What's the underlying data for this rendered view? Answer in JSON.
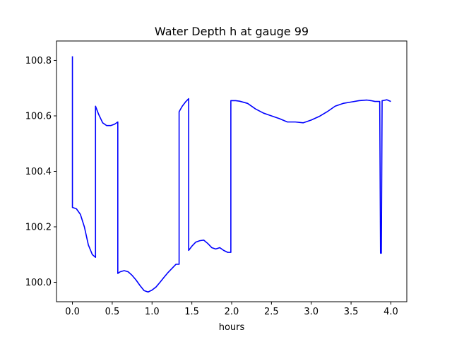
{
  "chart_data": {
    "type": "line",
    "title": "Water Depth h at gauge 99",
    "xlabel": "hours",
    "ylabel": "",
    "xlim": [
      -0.2,
      4.2
    ],
    "ylim": [
      99.93,
      100.87
    ],
    "xticks": [
      0.0,
      0.5,
      1.0,
      1.5,
      2.0,
      2.5,
      3.0,
      3.5,
      4.0
    ],
    "xtick_labels": [
      "0.0",
      "0.5",
      "1.0",
      "1.5",
      "2.0",
      "2.5",
      "3.0",
      "3.5",
      "4.0"
    ],
    "yticks": [
      100.0,
      100.2,
      100.4,
      100.6,
      100.8
    ],
    "ytick_labels": [
      "100.0",
      "100.2",
      "100.4",
      "100.6",
      "100.8"
    ],
    "grid": false,
    "color": "#0000ff",
    "series": [
      {
        "x": [
          0.0,
          0.0,
          0.05,
          0.1,
          0.15,
          0.2,
          0.25,
          0.29,
          0.29,
          0.33,
          0.38,
          0.43,
          0.48,
          0.53,
          0.57,
          0.57,
          0.6,
          0.65,
          0.7,
          0.75,
          0.8,
          0.85,
          0.9,
          0.95,
          1.0,
          1.05,
          1.1,
          1.15,
          1.2,
          1.25,
          1.3,
          1.34,
          1.34,
          1.38,
          1.42,
          1.46,
          1.46,
          1.5,
          1.55,
          1.6,
          1.65,
          1.7,
          1.75,
          1.8,
          1.85,
          1.9,
          1.95,
          1.99,
          1.99,
          2.05,
          2.1,
          2.2,
          2.3,
          2.4,
          2.5,
          2.6,
          2.7,
          2.8,
          2.9,
          3.0,
          3.1,
          3.2,
          3.3,
          3.4,
          3.5,
          3.6,
          3.7,
          3.75,
          3.8,
          3.86,
          3.87,
          3.88,
          3.89,
          3.9,
          3.95,
          4.0
        ],
        "y": [
          100.815,
          100.27,
          100.265,
          100.245,
          100.2,
          100.135,
          100.1,
          100.09,
          100.635,
          100.605,
          100.575,
          100.565,
          100.565,
          100.57,
          100.578,
          100.032,
          100.038,
          100.042,
          100.038,
          100.025,
          100.008,
          99.988,
          99.97,
          99.965,
          99.972,
          99.983,
          100.0,
          100.018,
          100.035,
          100.05,
          100.065,
          100.065,
          100.615,
          100.635,
          100.65,
          100.662,
          100.115,
          100.13,
          100.145,
          100.15,
          100.152,
          100.14,
          100.125,
          100.12,
          100.125,
          100.115,
          100.108,
          100.108,
          100.655,
          100.655,
          100.653,
          100.645,
          100.625,
          100.61,
          100.6,
          100.59,
          100.578,
          100.578,
          100.575,
          100.585,
          100.598,
          100.615,
          100.635,
          100.645,
          100.65,
          100.655,
          100.657,
          100.655,
          100.652,
          100.652,
          100.105,
          100.105,
          100.655,
          100.655,
          100.658,
          100.652
        ]
      }
    ]
  }
}
